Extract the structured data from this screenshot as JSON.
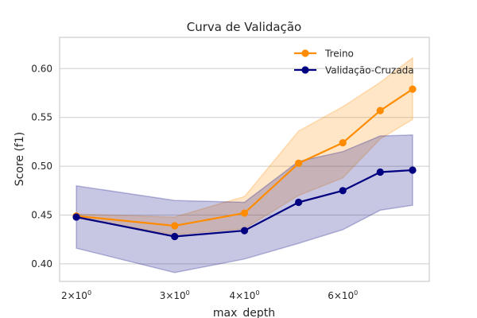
{
  "chart_data": {
    "type": "line",
    "title": "Curva de Validação",
    "xlabel": "max_depth",
    "ylabel": "Score (f1)",
    "x_scale": "log",
    "x": [
      2,
      3,
      4,
      5,
      6,
      7,
      8
    ],
    "x_tick_labels": [
      {
        "value": 2,
        "base": "2",
        "sup": "0"
      },
      {
        "value": 3,
        "base": "3",
        "sup": "0"
      },
      {
        "value": 4,
        "base": "4",
        "sup": "0"
      },
      {
        "value": 6,
        "base": "6",
        "sup": "0"
      }
    ],
    "y_ticks": [
      0.4,
      0.45,
      0.5,
      0.55,
      0.6
    ],
    "y_tick_labels": [
      "0.40",
      "0.45",
      "0.50",
      "0.55",
      "0.60"
    ],
    "ylim": [
      0.382,
      0.632
    ],
    "grid": true,
    "legend_position": "top-right",
    "series": [
      {
        "name": "Treino",
        "color": "#ff8c00",
        "values": [
          0.449,
          0.439,
          0.452,
          0.503,
          0.524,
          0.557,
          0.579
        ],
        "band_upper": [
          0.451,
          0.448,
          0.469,
          0.536,
          0.561,
          0.586,
          0.611
        ],
        "band_lower": [
          0.447,
          0.43,
          0.436,
          0.47,
          0.488,
          0.528,
          0.548
        ]
      },
      {
        "name": "Validação-Cruzada",
        "color": "#000080",
        "values": [
          0.448,
          0.428,
          0.434,
          0.463,
          0.475,
          0.494,
          0.496
        ],
        "band_upper": [
          0.48,
          0.465,
          0.463,
          0.505,
          0.515,
          0.531,
          0.532
        ],
        "band_lower": [
          0.416,
          0.391,
          0.405,
          0.421,
          0.435,
          0.455,
          0.46
        ]
      }
    ]
  }
}
